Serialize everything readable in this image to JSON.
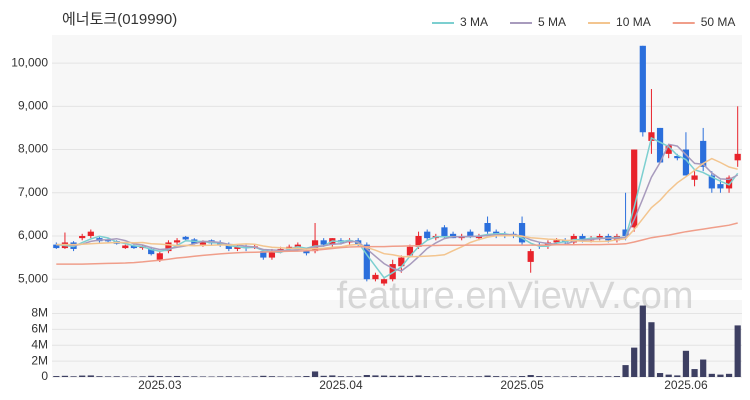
{
  "chart_data": {
    "type": "candlestick",
    "title": "에너토크(019990)",
    "watermark": "feature.enViewV.com",
    "categories": [
      null,
      null,
      null,
      null,
      null,
      null,
      null,
      null,
      null,
      null,
      null,
      null,
      "2025.03",
      null,
      null,
      null,
      null,
      null,
      null,
      null,
      null,
      null,
      null,
      null,
      null,
      null,
      null,
      null,
      null,
      null,
      null,
      null,
      null,
      "2025.04",
      null,
      null,
      null,
      null,
      null,
      null,
      null,
      null,
      null,
      null,
      null,
      null,
      null,
      null,
      null,
      null,
      null,
      null,
      null,
      null,
      "2025.05",
      null,
      null,
      null,
      null,
      null,
      null,
      null,
      null,
      null,
      null,
      null,
      null,
      null,
      null,
      null,
      null,
      null,
      null,
      "2025.06",
      null,
      null,
      null,
      null,
      null,
      null
    ],
    "up_color": "#e8232b",
    "down_color": "#2b6fdc",
    "open": [
      5800,
      5720,
      5850,
      5950,
      6000,
      5950,
      5900,
      5880,
      5720,
      5780,
      5720,
      5700,
      5450,
      5650,
      5850,
      5980,
      5920,
      5800,
      5900,
      5850,
      5800,
      5700,
      5750,
      5720,
      5650,
      5500,
      5650,
      5700,
      5750,
      5650,
      5650,
      5900,
      5800,
      5900,
      5850,
      5900,
      5800,
      5000,
      4900,
      5000,
      5300,
      5550,
      5750,
      6100,
      5950,
      6200,
      6050,
      5950,
      6100,
      5950,
      6300,
      6100,
      6050,
      6050,
      6300,
      5400,
      5800,
      5780,
      5850,
      5900,
      5850,
      6000,
      5900,
      5950,
      6000,
      5900,
      6150,
      6200,
      10400,
      8200,
      8500,
      7900,
      7850,
      8000,
      7300,
      8200,
      7400,
      7200,
      7100,
      7750
    ],
    "high": [
      5850,
      6080,
      5880,
      6050,
      6150,
      6000,
      5950,
      5900,
      5800,
      5800,
      5780,
      5750,
      5650,
      5900,
      5950,
      6000,
      5950,
      5900,
      5920,
      5900,
      5850,
      5780,
      5800,
      5800,
      5700,
      5700,
      5750,
      5800,
      5850,
      5700,
      6300,
      5950,
      5950,
      5950,
      5950,
      5950,
      5850,
      5150,
      5050,
      5450,
      5550,
      5800,
      6100,
      6150,
      6050,
      6250,
      6100,
      6050,
      6150,
      6050,
      6450,
      6150,
      6100,
      6100,
      6450,
      5700,
      5850,
      5900,
      5950,
      5950,
      6050,
      6050,
      6000,
      6050,
      6050,
      6050,
      7000,
      8000,
      10400,
      9400,
      8500,
      8100,
      7900,
      8400,
      7500,
      8500,
      7500,
      7300,
      7400,
      9000
    ],
    "low": [
      5700,
      5700,
      5650,
      5900,
      5950,
      5850,
      5850,
      5800,
      5700,
      5700,
      5680,
      5550,
      5400,
      5600,
      5800,
      5900,
      5800,
      5750,
      5800,
      5750,
      5650,
      5650,
      5650,
      5700,
      5450,
      5450,
      5600,
      5650,
      5700,
      5550,
      5600,
      5750,
      5750,
      5800,
      5800,
      5750,
      4950,
      4950,
      4850,
      4950,
      5150,
      5500,
      5700,
      5900,
      5900,
      5950,
      5950,
      5900,
      5950,
      5900,
      6050,
      5950,
      5950,
      5950,
      5800,
      5150,
      5700,
      5700,
      5800,
      5800,
      5800,
      5850,
      5850,
      5900,
      5850,
      5850,
      5900,
      6100,
      8300,
      7900,
      7700,
      7800,
      7750,
      7400,
      7150,
      7500,
      7000,
      7000,
      7000,
      7600
    ],
    "close": [
      5720,
      5850,
      5700,
      6000,
      6100,
      5880,
      5880,
      5820,
      5780,
      5720,
      5760,
      5580,
      5600,
      5850,
      5900,
      5920,
      5820,
      5880,
      5830,
      5800,
      5700,
      5750,
      5720,
      5760,
      5500,
      5650,
      5700,
      5750,
      5800,
      5600,
      5900,
      5800,
      5950,
      5850,
      5900,
      5800,
      5000,
      5100,
      5000,
      5350,
      5500,
      5750,
      6000,
      5950,
      6000,
      6000,
      5950,
      6000,
      6000,
      6000,
      6100,
      6050,
      6000,
      6000,
      5850,
      5650,
      5780,
      5850,
      5900,
      5850,
      6000,
      5900,
      5950,
      6000,
      5900,
      6000,
      6000,
      8000,
      8400,
      8400,
      7700,
      8100,
      7800,
      7400,
      7400,
      7600,
      7100,
      7100,
      7350,
      7900
    ],
    "series": [
      {
        "name": "3 MA",
        "color": "#7ccfd0",
        "values": [
          5800,
          5780,
          5757,
          5850,
          5933,
          5993,
          5953,
          5860,
          5827,
          5773,
          5753,
          5687,
          5647,
          5677,
          5783,
          5890,
          5880,
          5873,
          5843,
          5837,
          5777,
          5750,
          5723,
          5743,
          5660,
          5637,
          5617,
          5700,
          5750,
          5717,
          5767,
          5767,
          5883,
          5867,
          5900,
          5850,
          5567,
          5300,
          5033,
          5150,
          5283,
          5533,
          5750,
          5900,
          5983,
          5983,
          5983,
          5983,
          5983,
          6000,
          6033,
          6050,
          6050,
          6017,
          5950,
          5833,
          5760,
          5760,
          5843,
          5867,
          5917,
          5917,
          5950,
          5950,
          5950,
          5967,
          5967,
          6667,
          7467,
          8267,
          8167,
          8067,
          7867,
          7767,
          7533,
          7467,
          7367,
          7267,
          7183,
          7450
        ]
      },
      {
        "name": "5 MA",
        "color": "#a89bbd",
        "values": [
          5800,
          5800,
          5780,
          5810,
          5874,
          5906,
          5912,
          5936,
          5892,
          5816,
          5792,
          5732,
          5688,
          5702,
          5738,
          5770,
          5818,
          5874,
          5870,
          5850,
          5806,
          5792,
          5760,
          5746,
          5686,
          5676,
          5666,
          5672,
          5680,
          5700,
          5750,
          5770,
          5810,
          5820,
          5880,
          5860,
          5700,
          5530,
          5360,
          5250,
          5190,
          5340,
          5520,
          5710,
          5840,
          5940,
          5980,
          5980,
          5990,
          5990,
          6010,
          6030,
          6030,
          6030,
          6000,
          5910,
          5856,
          5826,
          5806,
          5806,
          5876,
          5900,
          5920,
          5940,
          5950,
          5950,
          5970,
          6380,
          6860,
          7360,
          7700,
          8120,
          8080,
          7880,
          7680,
          7660,
          7460,
          7320,
          7310,
          7410
        ]
      },
      {
        "name": "10 MA",
        "color": "#f3c58f",
        "values": [
          5800,
          5800,
          5800,
          5810,
          5820,
          5830,
          5840,
          5850,
          5850,
          5845,
          5849,
          5822,
          5812,
          5797,
          5777,
          5781,
          5775,
          5781,
          5786,
          5794,
          5788,
          5805,
          5817,
          5808,
          5768,
          5741,
          5729,
          5716,
          5713,
          5693,
          5713,
          5718,
          5741,
          5750,
          5790,
          5805,
          5735,
          5670,
          5590,
          5565,
          5525,
          5520,
          5525,
          5535,
          5545,
          5565,
          5660,
          5750,
          5850,
          5915,
          5975,
          6005,
          6005,
          6010,
          5995,
          5960,
          5943,
          5928,
          5918,
          5903,
          5893,
          5878,
          5873,
          5873,
          5878,
          5913,
          5935,
          6150,
          6400,
          6655,
          6825,
          7045,
          7230,
          7370,
          7520,
          7680,
          7790,
          7700,
          7595,
          7545
        ]
      },
      {
        "name": "50 MA",
        "color": "#f09e8a",
        "values": [
          5350,
          5350,
          5350,
          5350,
          5355,
          5360,
          5365,
          5370,
          5375,
          5385,
          5400,
          5420,
          5440,
          5460,
          5490,
          5510,
          5530,
          5550,
          5570,
          5585,
          5600,
          5610,
          5620,
          5625,
          5630,
          5635,
          5640,
          5645,
          5650,
          5660,
          5670,
          5690,
          5710,
          5730,
          5745,
          5750,
          5755,
          5755,
          5755,
          5760,
          5765,
          5770,
          5775,
          5780,
          5780,
          5785,
          5785,
          5785,
          5790,
          5790,
          5790,
          5790,
          5790,
          5790,
          5790,
          5790,
          5790,
          5790,
          5795,
          5795,
          5795,
          5800,
          5800,
          5800,
          5805,
          5810,
          5820,
          5860,
          5910,
          5960,
          5990,
          6020,
          6060,
          6100,
          6130,
          6160,
          6190,
          6220,
          6250,
          6300
        ]
      }
    ],
    "ylim": [
      4750,
      10650
    ],
    "yticks": [
      {
        "value": 5000,
        "label": "5,000"
      },
      {
        "value": 6000,
        "label": "6,000"
      },
      {
        "value": 7000,
        "label": "7,000"
      },
      {
        "value": 8000,
        "label": "8,000"
      },
      {
        "value": 9000,
        "label": "9,000"
      },
      {
        "value": 10000,
        "label": "10,000"
      }
    ],
    "grid": true,
    "volume": {
      "color": "#3d3f62",
      "values": [
        120000,
        150000,
        90000,
        180000,
        200000,
        100000,
        80000,
        90000,
        70000,
        60000,
        80000,
        150000,
        120000,
        100000,
        130000,
        90000,
        80000,
        70000,
        60000,
        80000,
        90000,
        70000,
        60000,
        80000,
        150000,
        100000,
        70000,
        60000,
        80000,
        120000,
        700000,
        150000,
        200000,
        100000,
        90000,
        80000,
        250000,
        200000,
        180000,
        150000,
        160000,
        140000,
        200000,
        120000,
        100000,
        110000,
        90000,
        80000,
        100000,
        90000,
        180000,
        110000,
        90000,
        80000,
        120000,
        250000,
        120000,
        90000,
        80000,
        70000,
        100000,
        90000,
        80000,
        100000,
        90000,
        110000,
        1500000,
        3700000,
        9000000,
        6900000,
        500000,
        300000,
        200000,
        3300000,
        1000000,
        2200000,
        400000,
        300000,
        400000,
        6500000
      ],
      "ylim": [
        0,
        9700000
      ],
      "yticks": [
        0,
        {
          "value": 2000000,
          "label": "2M"
        },
        {
          "value": 4000000,
          "label": "4M"
        },
        {
          "value": 6000000,
          "label": "6M"
        },
        {
          "value": 8000000,
          "label": "8M"
        }
      ]
    }
  }
}
